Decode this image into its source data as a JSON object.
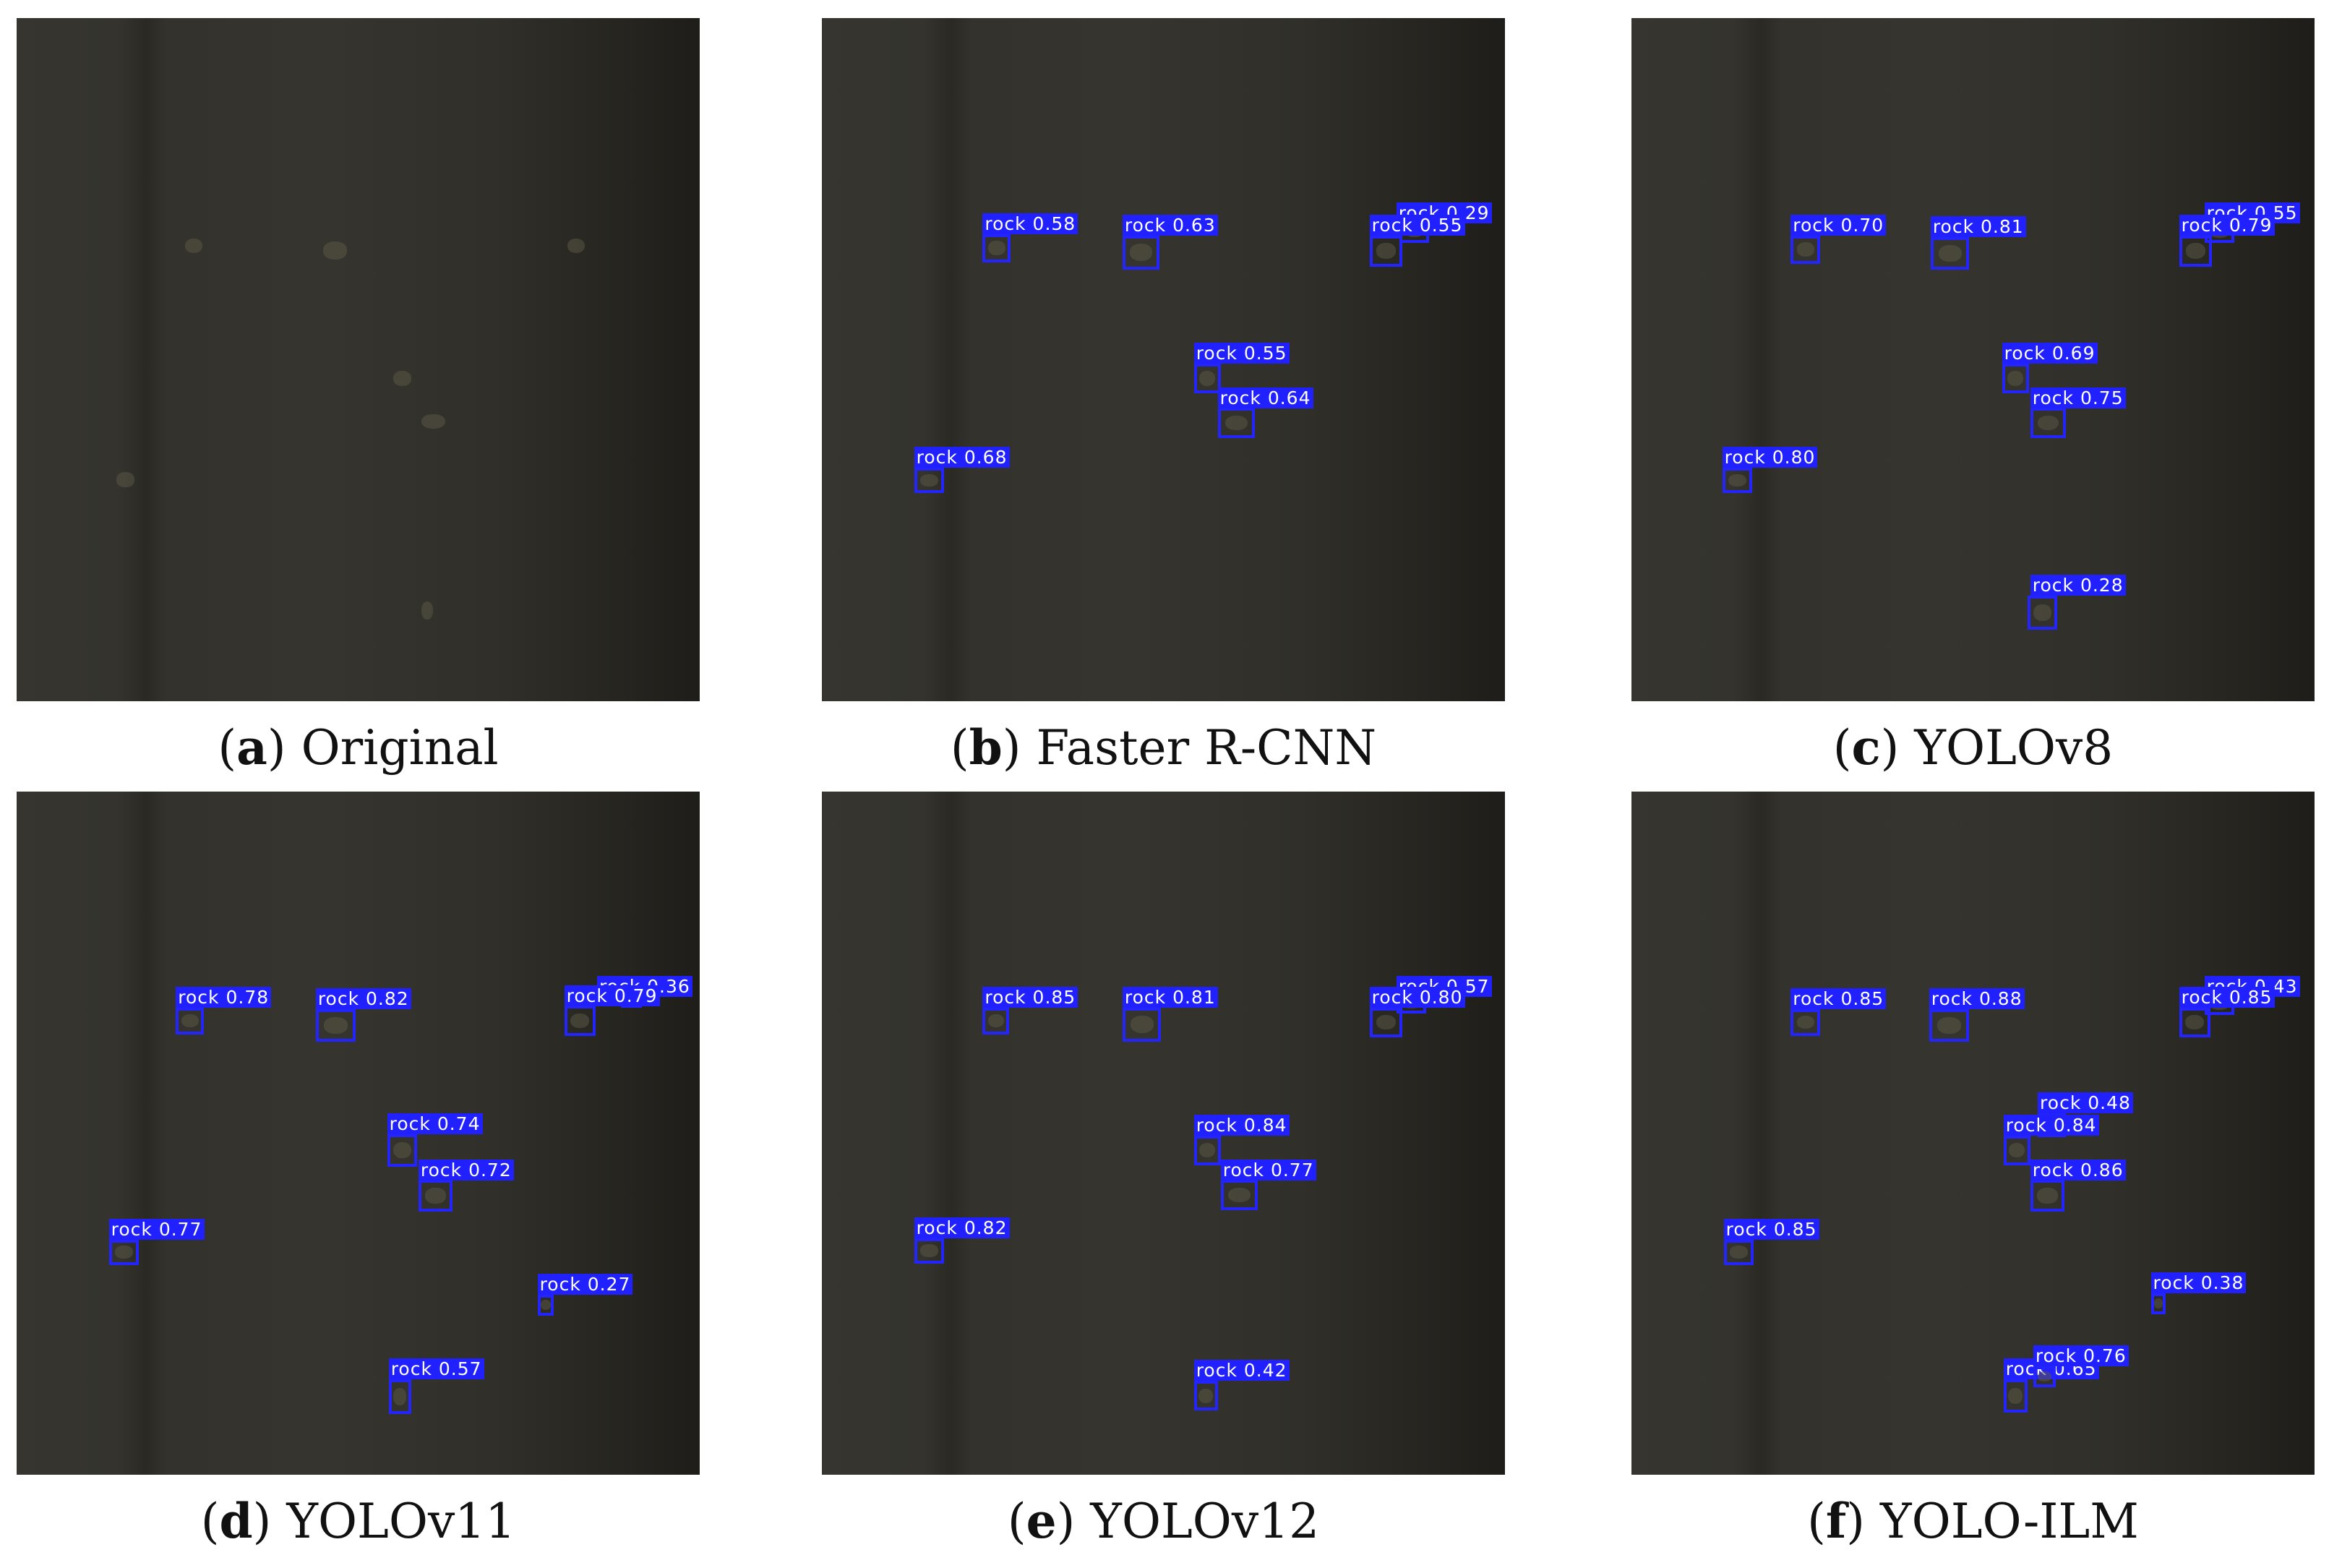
{
  "panels": [
    {
      "caption": {
        "open": "(",
        "letter": "a",
        "rest": ") Original"
      },
      "detections": []
    },
    {
      "caption": {
        "open": "(",
        "letter": "b",
        "rest": ") Faster R-CNN"
      },
      "detections": [
        "rock 0.58",
        "rock 0.63",
        "rock 0.29",
        "rock 0.55",
        "rock 0.55",
        "rock 0.64",
        "rock 0.68"
      ]
    },
    {
      "caption": {
        "open": "(",
        "letter": "c",
        "rest": ") YOLOv8"
      },
      "detections": [
        "rock 0.70",
        "rock 0.81",
        "rock 0.55",
        "rock 0.79",
        "rock 0.69",
        "rock 0.75",
        "rock 0.80",
        "rock 0.28"
      ]
    },
    {
      "caption": {
        "open": "(",
        "letter": "d",
        "rest": ") YOLOv11"
      },
      "detections": [
        "rock 0.78",
        "rock 0.82",
        "rock 0.36",
        "rock 0.79",
        "rock 0.74",
        "rock 0.72",
        "rock 0.77",
        "rock 0.27",
        "rock 0.57"
      ]
    },
    {
      "caption": {
        "open": "(",
        "letter": "e",
        "rest": ") YOLOv12"
      },
      "detections": [
        "rock 0.85",
        "rock 0.81",
        "rock 0.57",
        "rock 0.80",
        "rock 0.84",
        "rock 0.77",
        "rock 0.82",
        "rock 0.42"
      ]
    },
    {
      "caption": {
        "open": "(",
        "letter": "f",
        "rest": ") YOLO-ILM"
      },
      "detections": [
        "rock 0.85",
        "rock 0.88",
        "rock 0.43",
        "rock 0.85",
        "rock 0.48",
        "rock 0.84",
        "rock 0.86",
        "rock 0.85",
        "rock 0.38",
        "rock 0.65",
        "rock 0.76"
      ]
    }
  ]
}
